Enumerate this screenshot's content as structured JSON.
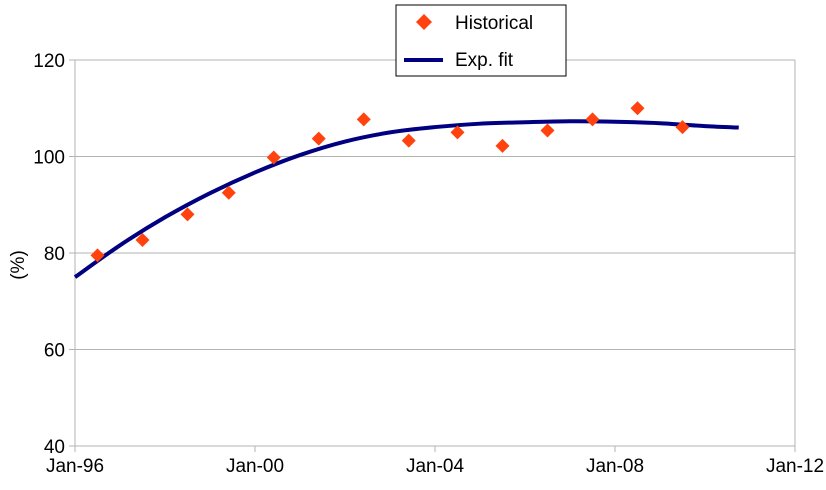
{
  "chart_data": {
    "type": "scatter",
    "title": "",
    "xlabel": "",
    "ylabel": "(%)",
    "ylim": [
      40,
      120
    ],
    "xlim": [
      "1996-01",
      "2012-01"
    ],
    "yticks": [
      "40",
      "60",
      "80",
      "100",
      "120"
    ],
    "xticks": [
      "Jan-96",
      "Jan-00",
      "Jan-04",
      "Jan-08",
      "Jan-12"
    ],
    "grid": "horizontal",
    "legend_position": "top-center",
    "series": [
      {
        "name": "Historical",
        "type": "scatter",
        "marker": "diamond",
        "color": "#ff420e",
        "x": [
          "1996-07",
          "1997-07",
          "1998-07",
          "1999-06",
          "2000-06",
          "2001-06",
          "2002-06",
          "2003-06",
          "2004-07",
          "2005-07",
          "2006-07",
          "2007-07",
          "2008-07",
          "2009-07"
        ],
        "y": [
          79.5,
          82.7,
          88.0,
          92.5,
          99.8,
          103.7,
          107.7,
          103.3,
          105.0,
          102.2,
          105.4,
          107.7,
          110.0,
          106.1
        ]
      },
      {
        "name": "Exp. fit",
        "type": "line",
        "color": "#000080",
        "x": [
          "1996-01",
          "1997-01",
          "1998-01",
          "1999-01",
          "2000-01",
          "2001-01",
          "2002-01",
          "2003-01",
          "2004-01",
          "2005-01",
          "2006-01",
          "2007-01",
          "2008-01",
          "2009-01",
          "2010-01",
          "2010-10"
        ],
        "y": [
          75.0,
          81.6,
          87.4,
          92.4,
          96.7,
          100.3,
          103.1,
          105.0,
          106.1,
          106.8,
          107.1,
          107.3,
          107.2,
          106.9,
          106.3,
          106.0
        ]
      }
    ]
  },
  "colors": {
    "grid": "#b3b3b3",
    "axis": "#b3b3b3",
    "historical": "#ff420e",
    "fit": "#000080"
  }
}
